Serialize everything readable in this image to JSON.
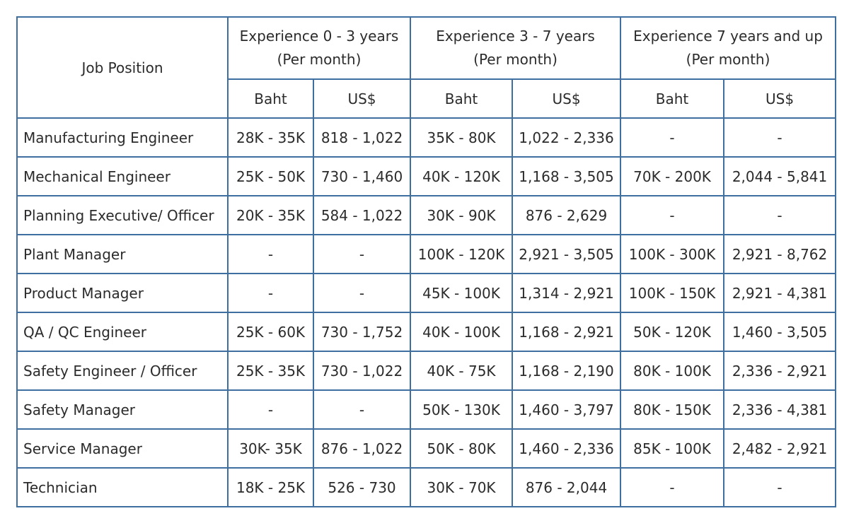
{
  "table": {
    "corner_label": "Job Position",
    "groups": [
      {
        "line1": "Experience 0 - 3 years",
        "line2": "(Per month)"
      },
      {
        "line1": "Experience 3 - 7 years",
        "line2": "(Per month)"
      },
      {
        "line1": "Experience 7 years and up",
        "line2": "(Per month)"
      }
    ],
    "subheaders": [
      "Baht",
      "US$",
      "Baht",
      "US$",
      "Baht",
      "US$"
    ],
    "rows": [
      {
        "position": "Manufacturing Engineer",
        "values": [
          "28K - 35K",
          "818 - 1,022",
          "35K - 80K",
          "1,022 - 2,336",
          "-",
          "-"
        ]
      },
      {
        "position": "Mechanical Engineer",
        "values": [
          "25K - 50K",
          "730 - 1,460",
          "40K - 120K",
          "1,168 - 3,505",
          "70K - 200K",
          "2,044 - 5,841"
        ]
      },
      {
        "position": "Planning Executive/ Officer",
        "values": [
          "20K - 35K",
          "584 - 1,022",
          "30K - 90K",
          "876 - 2,629",
          "-",
          "-"
        ]
      },
      {
        "position": "Plant Manager",
        "values": [
          "-",
          "-",
          "100K - 120K",
          "2,921 - 3,505",
          "100K - 300K",
          "2,921 - 8,762"
        ]
      },
      {
        "position": "Product Manager",
        "values": [
          "-",
          "-",
          "45K - 100K",
          "1,314 - 2,921",
          "100K - 150K",
          "2,921 - 4,381"
        ]
      },
      {
        "position": "QA / QC Engineer",
        "values": [
          "25K - 60K",
          "730 - 1,752",
          "40K - 100K",
          "1,168 - 2,921",
          "50K - 120K",
          "1,460 - 3,505"
        ]
      },
      {
        "position": "Safety Engineer / Officer",
        "values": [
          "25K - 35K",
          "730 - 1,022",
          "40K - 75K",
          "1,168 - 2,190",
          "80K - 100K",
          "2,336 - 2,921"
        ]
      },
      {
        "position": "Safety Manager",
        "values": [
          "-",
          "-",
          "50K - 130K",
          "1,460 - 3,797",
          "80K - 150K",
          "2,336 - 4,381"
        ]
      },
      {
        "position": "Service Manager",
        "values": [
          "30K- 35K",
          "876 - 1,022",
          "50K - 80K",
          "1,460 - 2,336",
          "85K - 100K",
          "2,482 - 2,921"
        ]
      },
      {
        "position": "Technician",
        "values": [
          "18K - 25K",
          "526 - 730",
          "30K - 70K",
          "876 - 2,044",
          "-",
          "-"
        ]
      }
    ]
  },
  "colors": {
    "border": "#3f6fa0",
    "text": "#2b2b2b",
    "background": "#ffffff"
  }
}
